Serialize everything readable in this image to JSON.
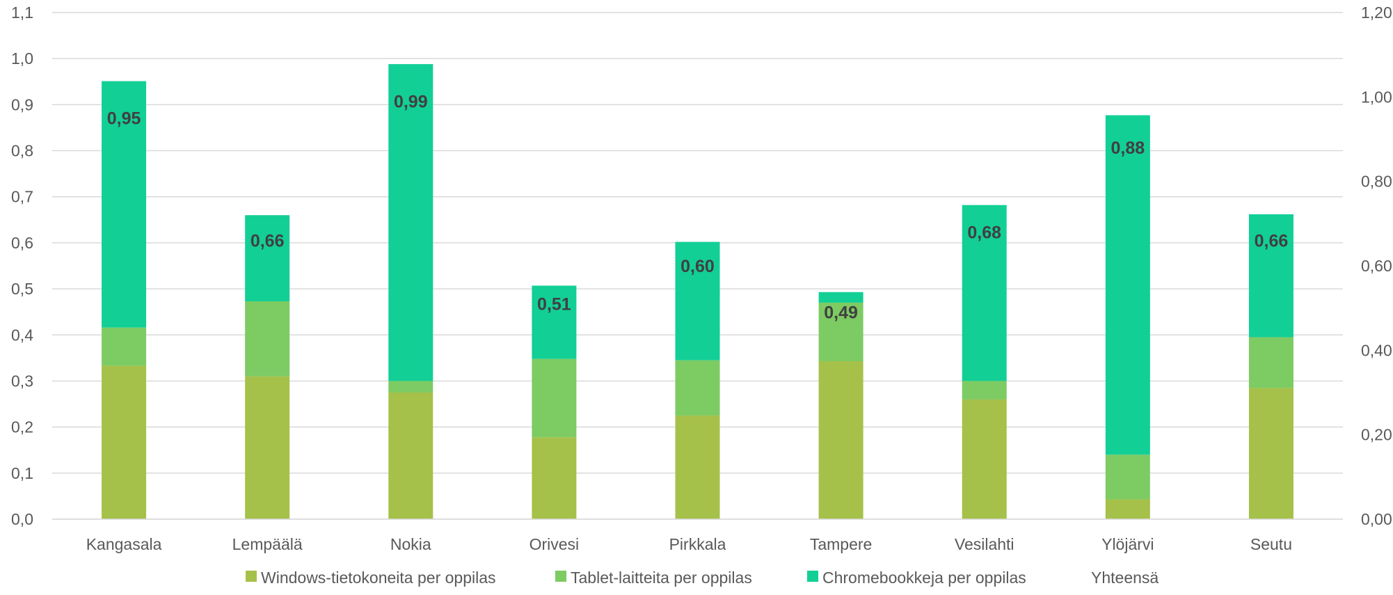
{
  "chart_data": {
    "type": "bar",
    "stacked": true,
    "categories": [
      "Kangasala",
      "Lempäälä",
      "Nokia",
      "Orivesi",
      "Pirkkala",
      "Tampere",
      "Vesilahti",
      "Ylöjärvi",
      "Seutu"
    ],
    "series": [
      {
        "name": "Windows-tietokoneita per oppilas",
        "color": "#a5c14a",
        "values": [
          0.333,
          0.31,
          0.275,
          0.178,
          0.225,
          0.343,
          0.26,
          0.043,
          0.285
        ]
      },
      {
        "name": "Tablet-laitteita per oppilas",
        "color": "#7dcb63",
        "values": [
          0.083,
          0.163,
          0.025,
          0.17,
          0.12,
          0.127,
          0.04,
          0.097,
          0.11
        ]
      },
      {
        "name": "Chromebookkeja per oppilas",
        "color": "#12cf96",
        "values": [
          0.535,
          0.187,
          0.688,
          0.159,
          0.257,
          0.023,
          0.382,
          0.737,
          0.267
        ]
      }
    ],
    "total_series": {
      "name": "Yhteensä",
      "axis": "secondary",
      "values": [
        0.95,
        0.66,
        0.99,
        0.51,
        0.6,
        0.49,
        0.68,
        0.88,
        0.66
      ],
      "labels": [
        "0,95",
        "0,66",
        "0,99",
        "0,51",
        "0,60",
        "0,49",
        "0,68",
        "0,88",
        "0,66"
      ]
    },
    "y_axis": {
      "min": 0,
      "max": 1.1,
      "ticks": [
        0,
        0.1,
        0.2,
        0.3,
        0.4,
        0.5,
        0.6,
        0.7,
        0.8,
        0.9,
        1.0,
        1.1
      ],
      "tick_labels": [
        "0,0",
        "0,1",
        "0,2",
        "0,3",
        "0,4",
        "0,5",
        "0,6",
        "0,7",
        "0,8",
        "0,9",
        "1,0",
        "1,1"
      ]
    },
    "y2_axis": {
      "min": 0,
      "max": 1.2,
      "ticks": [
        0,
        0.2,
        0.4,
        0.6,
        0.8,
        1.0,
        1.2
      ],
      "tick_labels": [
        "0,00",
        "0,20",
        "0,40",
        "0,60",
        "0,80",
        "1,00",
        "1,20"
      ]
    },
    "grid": true,
    "legend_position": "bottom"
  }
}
